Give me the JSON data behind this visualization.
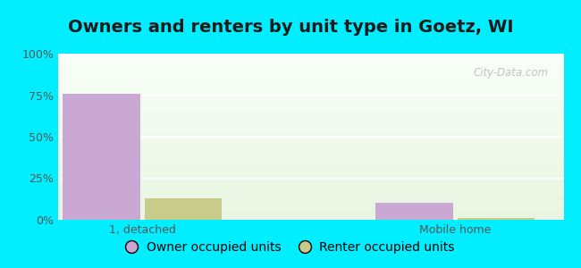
{
  "title": "Owners and renters by unit type in Goetz, WI",
  "categories": [
    "1, detached",
    "Mobile home"
  ],
  "series": [
    {
      "label": "Owner occupied units",
      "values": [
        76,
        10
      ],
      "color": "#c9a8d4"
    },
    {
      "label": "Renter occupied units",
      "values": [
        13,
        1
      ],
      "color": "#c8cc8a"
    }
  ],
  "ylim": [
    0,
    100
  ],
  "yticks": [
    0,
    25,
    50,
    75,
    100
  ],
  "ytick_labels": [
    "0%",
    "25%",
    "50%",
    "75%",
    "100%"
  ],
  "outer_bg": "#00eeff",
  "plot_bg_top": "#f5fff5",
  "plot_bg_bottom": "#e8f5e0",
  "watermark": "City-Data.com",
  "bar_width": 0.32,
  "title_fontsize": 14,
  "legend_fontsize": 10,
  "tick_fontsize": 9
}
